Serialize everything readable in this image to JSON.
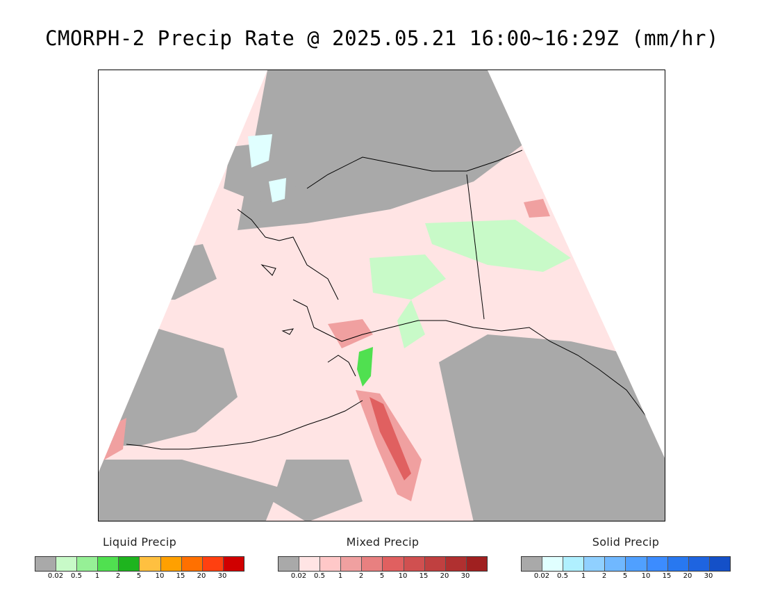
{
  "title": "CMORPH-2 Precip Rate @ 2025.05.21 16:00~16:29Z (mm/hr)",
  "legends": [
    {
      "title": "Liquid Precip",
      "colors": [
        "#a9a9a9",
        "#c8fac8",
        "#96f096",
        "#50e050",
        "#1eb41e",
        "#ffc040",
        "#ffa000",
        "#ff7000",
        "#ff4010",
        "#d00000"
      ],
      "ticks": [
        "0.02",
        "0.5",
        "1",
        "2",
        "5",
        "10",
        "15",
        "20",
        "30"
      ]
    },
    {
      "title": "Mixed Precip",
      "colors": [
        "#a9a9a9",
        "#ffe4e4",
        "#ffc8c8",
        "#f0a0a0",
        "#e88080",
        "#e06060",
        "#d05050",
        "#c04040",
        "#b03030",
        "#a02020"
      ],
      "ticks": [
        "0.02",
        "0.5",
        "1",
        "2",
        "5",
        "10",
        "15",
        "20",
        "30"
      ]
    },
    {
      "title": "Solid Precip",
      "colors": [
        "#a9a9a9",
        "#e0ffff",
        "#b0f0ff",
        "#90d0ff",
        "#70b8ff",
        "#50a0ff",
        "#3c8cff",
        "#2878f0",
        "#1e64e0",
        "#1450c8"
      ],
      "ticks": [
        "0.02",
        "0.5",
        "1",
        "2",
        "5",
        "10",
        "15",
        "20",
        "30"
      ]
    }
  ],
  "map_colors": {
    "outside": "#ffffff",
    "no_precip": "#a9a9a9",
    "mixed_light": "#ffe4e4",
    "mixed_mid": "#f0a0a0",
    "mixed_strong": "#e06060",
    "liquid_light": "#c8fac8",
    "liquid_mid": "#50e050",
    "solid_light": "#e0ffff",
    "coastline": "#000000"
  }
}
